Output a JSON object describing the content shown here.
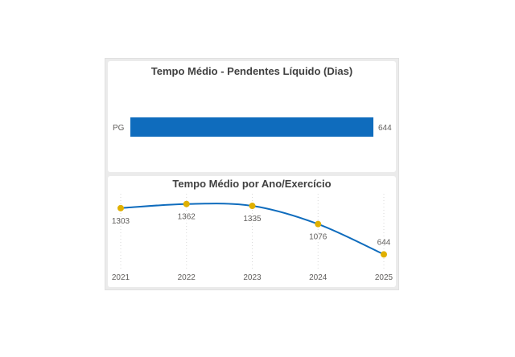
{
  "chart_data": [
    {
      "type": "bar",
      "orientation": "horizontal",
      "title": "Tempo Médio - Pendentes Líquido (Dias)",
      "categories": [
        "PG"
      ],
      "values": [
        644
      ],
      "data_labels": [
        "644"
      ],
      "xlim": [
        0,
        644
      ],
      "color": "#0f6cbd",
      "grid": false
    },
    {
      "type": "line",
      "title": "Tempo Médio por Ano/Exercício",
      "x": [
        "2021",
        "2022",
        "2023",
        "2024",
        "2025"
      ],
      "values": [
        1303,
        1362,
        1335,
        1076,
        644
      ],
      "data_labels": [
        "1303",
        "1362",
        "1335",
        "1076",
        "644"
      ],
      "ylim": [
        500,
        1450
      ],
      "line_color": "#0f6cbd",
      "marker_color": "#e0b000",
      "grid": "vertical dotted"
    }
  ]
}
